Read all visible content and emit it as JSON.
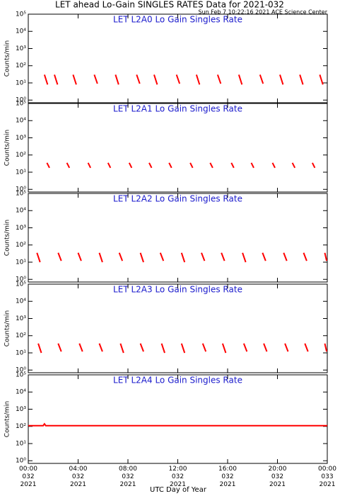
{
  "title": "LET ahead Lo-Gain SINGLES RATES Data for 2021-032",
  "subtitle": "Sun Feb  7 10:22:16 2021 ACE Science Center",
  "xlabel": "UTC Day of Year",
  "xlim": [
    0,
    24
  ],
  "xticks": [
    {
      "value": 0,
      "label": "00:00\n032\n2021"
    },
    {
      "value": 4,
      "label": "04:00\n032\n2021"
    },
    {
      "value": 8,
      "label": "08:00\n032\n2021"
    },
    {
      "value": 12,
      "label": "12:00\n032\n2021"
    },
    {
      "value": 16,
      "label": "16:00\n032\n2021"
    },
    {
      "value": 20,
      "label": "20:00\n032\n2021"
    },
    {
      "value": 24,
      "label": "00:00\n033\n2021"
    }
  ],
  "chart_data": [
    {
      "type": "line",
      "title": "LET L2A0 Lo Gain Singles Rate",
      "ylabel": "Counts/min",
      "color": "#ff0000",
      "log_y": true,
      "ylim": [
        0.7,
        100000
      ],
      "yticks": [
        {
          "value": 1,
          "label": "10⁰"
        },
        {
          "value": 10,
          "label": "10¹"
        },
        {
          "value": 100,
          "label": "10²"
        },
        {
          "value": 1000,
          "label": "10³"
        },
        {
          "value": 10000,
          "label": "10⁴"
        },
        {
          "value": 100000,
          "label": "10⁵"
        }
      ],
      "x": [
        1.3,
        1.55,
        null,
        2.1,
        2.35,
        null,
        3.6,
        3.85,
        null,
        5.3,
        5.55,
        null,
        7.0,
        7.25,
        null,
        8.7,
        8.95,
        null,
        10.1,
        10.35,
        null,
        11.9,
        12.15,
        null,
        13.5,
        13.75,
        null,
        15.2,
        15.45,
        null,
        16.9,
        17.15,
        null,
        18.6,
        18.85,
        null,
        20.2,
        20.45,
        null,
        21.8,
        22.05,
        null,
        23.4,
        23.65
      ],
      "values": [
        30,
        8,
        null,
        30,
        8,
        null,
        30,
        8,
        null,
        30,
        9,
        null,
        30,
        8,
        null,
        30,
        9,
        null,
        30,
        8,
        null,
        30,
        9,
        null,
        30,
        8,
        null,
        30,
        9,
        null,
        30,
        8,
        null,
        30,
        9,
        null,
        30,
        8,
        null,
        30,
        8,
        null,
        30,
        8
      ]
    },
    {
      "type": "line",
      "title": "LET L2A1 Lo Gain Singles Rate",
      "ylabel": "Counts/min",
      "color": "#ff0000",
      "log_y": true,
      "ylim": [
        0.7,
        100000
      ],
      "yticks": [
        {
          "value": 1,
          "label": "10⁰"
        },
        {
          "value": 10,
          "label": "10¹"
        },
        {
          "value": 100,
          "label": "10²"
        },
        {
          "value": 1000,
          "label": "10³"
        },
        {
          "value": 10000,
          "label": "10⁴"
        },
        {
          "value": 100000,
          "label": "10⁵"
        }
      ],
      "x": [
        1.5,
        1.7,
        null,
        3.1,
        3.3,
        null,
        4.8,
        5.0,
        null,
        6.4,
        6.6,
        null,
        8.1,
        8.3,
        null,
        9.7,
        9.9,
        null,
        11.3,
        11.5,
        null,
        13.0,
        13.2,
        null,
        14.6,
        14.8,
        null,
        16.3,
        16.5,
        null,
        17.9,
        18.1,
        null,
        19.6,
        19.8,
        null,
        21.2,
        21.4,
        null,
        22.8,
        23.0
      ],
      "values": [
        35,
        18,
        null,
        35,
        18,
        null,
        35,
        18,
        null,
        35,
        18,
        null,
        35,
        18,
        null,
        35,
        18,
        null,
        35,
        18,
        null,
        35,
        18,
        null,
        35,
        18,
        null,
        35,
        18,
        null,
        35,
        18,
        null,
        35,
        18,
        null,
        35,
        18,
        null,
        35,
        18
      ]
    },
    {
      "type": "line",
      "title": "LET L2A2 Lo Gain Singles Rate",
      "ylabel": "Counts/min",
      "color": "#ff0000",
      "log_y": true,
      "ylim": [
        0.7,
        100000
      ],
      "yticks": [
        {
          "value": 1,
          "label": "10⁰"
        },
        {
          "value": 10,
          "label": "10¹"
        },
        {
          "value": 100,
          "label": "10²"
        },
        {
          "value": 1000,
          "label": "10³"
        },
        {
          "value": 10000,
          "label": "10⁴"
        },
        {
          "value": 100000,
          "label": "10⁵"
        }
      ],
      "x": [
        0.7,
        0.95,
        null,
        2.4,
        2.65,
        null,
        4.0,
        4.25,
        null,
        5.7,
        5.95,
        null,
        7.3,
        7.55,
        null,
        9.0,
        9.25,
        null,
        10.6,
        10.85,
        null,
        12.3,
        12.55,
        null,
        13.9,
        14.15,
        null,
        15.5,
        15.75,
        null,
        17.2,
        17.45,
        null,
        18.8,
        19.05,
        null,
        20.5,
        20.75,
        null,
        22.1,
        22.35,
        null,
        23.8,
        23.95
      ],
      "values": [
        35,
        10,
        null,
        35,
        12,
        null,
        35,
        12,
        null,
        35,
        10,
        null,
        35,
        12,
        null,
        35,
        10,
        null,
        35,
        12,
        null,
        35,
        10,
        null,
        35,
        12,
        null,
        35,
        12,
        null,
        35,
        10,
        null,
        35,
        12,
        null,
        35,
        12,
        null,
        35,
        12,
        null,
        35,
        12
      ]
    },
    {
      "type": "line",
      "title": "LET L2A3 Lo Gain Singles Rate",
      "ylabel": "Counts/min",
      "color": "#ff0000",
      "log_y": true,
      "ylim": [
        0.7,
        100000
      ],
      "yticks": [
        {
          "value": 1,
          "label": "10⁰"
        },
        {
          "value": 10,
          "label": "10¹"
        },
        {
          "value": 100,
          "label": "10²"
        },
        {
          "value": 1000,
          "label": "10³"
        },
        {
          "value": 10000,
          "label": "10⁴"
        },
        {
          "value": 100000,
          "label": "10⁵"
        }
      ],
      "x": [
        0.8,
        1.05,
        null,
        2.4,
        2.65,
        null,
        4.1,
        4.35,
        null,
        5.7,
        5.95,
        null,
        7.4,
        7.65,
        null,
        9.0,
        9.25,
        null,
        10.7,
        10.95,
        null,
        12.3,
        12.55,
        null,
        14.0,
        14.25,
        null,
        15.6,
        15.85,
        null,
        17.3,
        17.55,
        null,
        18.9,
        19.15,
        null,
        20.6,
        20.85,
        null,
        22.2,
        22.45,
        null,
        23.8,
        23.95
      ],
      "values": [
        35,
        10,
        null,
        35,
        12,
        null,
        35,
        12,
        null,
        35,
        12,
        null,
        35,
        10,
        null,
        35,
        12,
        null,
        35,
        10,
        null,
        35,
        10,
        null,
        35,
        12,
        null,
        35,
        10,
        null,
        35,
        12,
        null,
        35,
        12,
        null,
        35,
        12,
        null,
        35,
        12,
        null,
        35,
        12
      ]
    },
    {
      "type": "line",
      "title": "LET L2A4 Lo Gain Singles Rate",
      "ylabel": "Counts/min",
      "color": "#ff0000",
      "log_y": true,
      "ylim": [
        0.7,
        100000
      ],
      "yticks": [
        {
          "value": 1,
          "label": "10⁰"
        },
        {
          "value": 10,
          "label": "10¹"
        },
        {
          "value": 100,
          "label": "10²"
        },
        {
          "value": 1000,
          "label": "10³"
        },
        {
          "value": 10000,
          "label": "10⁴"
        },
        {
          "value": 100000,
          "label": "10⁵"
        }
      ],
      "x": [
        0,
        1.2,
        1.3,
        1.4,
        24
      ],
      "values": [
        110,
        110,
        140,
        110,
        110
      ]
    }
  ]
}
